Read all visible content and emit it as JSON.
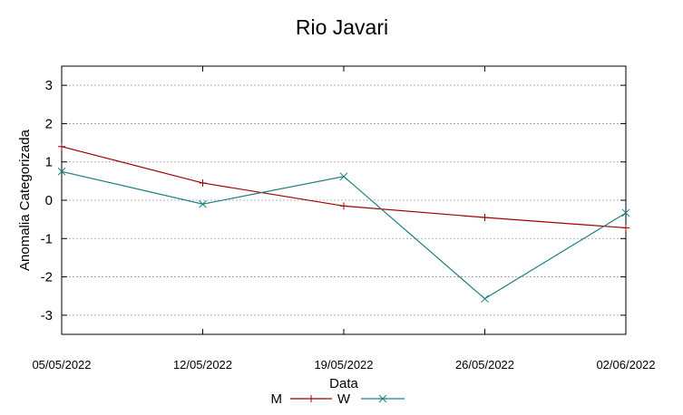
{
  "chart_data": {
    "type": "line",
    "title": "Rio Javari",
    "xlabel": "Data",
    "ylabel": "Anomalia Categorizada",
    "x": [
      "05/05/2022",
      "12/05/2022",
      "19/05/2022",
      "26/05/2022",
      "02/06/2022"
    ],
    "xlim": [
      0,
      4
    ],
    "ylim": [
      -3.5,
      3.5
    ],
    "yticks": [
      3,
      2,
      1,
      0,
      -1,
      -2,
      -3
    ],
    "ytick_labels": [
      "3",
      "2",
      "1",
      "0",
      "-1",
      "-2",
      "-3"
    ],
    "grid": true,
    "legend_position": "bottom-center",
    "series": [
      {
        "name": "M",
        "color": "#a00000",
        "marker": "plus",
        "x": [
          0,
          1,
          2,
          3,
          4
        ],
        "values": [
          1.4,
          0.45,
          -0.15,
          -0.45,
          -0.72
        ]
      },
      {
        "name": "W",
        "color": "#1a8080",
        "marker": "cross",
        "x": [
          0,
          1,
          2,
          3,
          4
        ],
        "values": [
          0.75,
          -0.1,
          0.62,
          -2.57,
          -0.33
        ]
      }
    ]
  }
}
